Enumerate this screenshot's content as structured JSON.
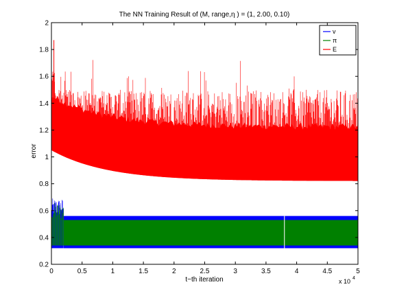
{
  "chart_data": {
    "type": "line",
    "title": "The NN Training Result of (M, range,η ) = (1, 2.00, 0.10)",
    "xlabel": "t−th iteration",
    "ylabel": "error",
    "x_multiplier_label": "x 10",
    "x_multiplier_exponent": "4",
    "xlim": [
      0,
      50000
    ],
    "ylim": [
      0.2,
      2.0
    ],
    "x_ticks": [
      0,
      5000,
      10000,
      15000,
      20000,
      25000,
      30000,
      35000,
      40000,
      45000,
      50000
    ],
    "x_tick_labels": [
      "0",
      "0.5",
      "1",
      "1.5",
      "2",
      "2.5",
      "3",
      "3.5",
      "4",
      "4.5",
      "5"
    ],
    "y_ticks": [
      0.2,
      0.4,
      0.6,
      0.8,
      1.0,
      1.2,
      1.4,
      1.6,
      1.8,
      2.0
    ],
    "y_tick_labels": [
      "0.2",
      "0.4",
      "0.6",
      "0.8",
      "1",
      "1.2",
      "1.4",
      "1.6",
      "1.8",
      "2"
    ],
    "grid": false,
    "legend_position": "top-right",
    "series": [
      {
        "name": "v",
        "color": "#0000ff",
        "band_low": 0.32,
        "band_high": 0.56,
        "initial_peak": 0.69,
        "settle_x": 2000
      },
      {
        "name": "π",
        "color": "#008000",
        "band_low": 0.34,
        "band_high": 0.53,
        "initial_peak": 0.66,
        "settle_x": 2000,
        "gap_x": 38000
      },
      {
        "name": "E",
        "color": "#ff0000",
        "start_value": 1.65,
        "floor_start": 1.05,
        "floor_end": 0.82,
        "typical_peak": 1.5,
        "max_value": 1.87
      }
    ]
  }
}
